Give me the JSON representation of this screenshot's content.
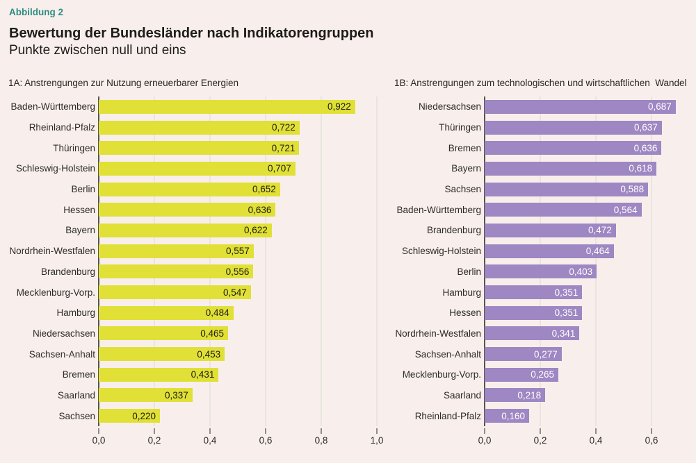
{
  "figure_label": "Abbildung 2",
  "header": {
    "title": "Bewertung der Bundesländer nach Indikatorengruppen",
    "subtitle": "Punkte zwischen null und eins"
  },
  "colors": {
    "background": "#f8efec",
    "accent_teal": "#2e8c82",
    "bar_yellow": "#e0e036",
    "bar_purple": "#9e87c2",
    "axis_line": "#57534d",
    "gridline": "#e9e5de",
    "tick": "#8f8c87",
    "text": "#262420",
    "value_label_left": "#1d1c18",
    "value_label_right": "#ffffff"
  },
  "chart_data": [
    {
      "type": "bar",
      "orientation": "horizontal",
      "title": "1A: Anstrengungen zur Nutzung erneuerbarer Energien",
      "categories": [
        "Baden-Württemberg",
        "Rheinland-Pfalz",
        "Thüringen",
        "Schleswig-Holstein",
        "Berlin",
        "Hessen",
        "Bayern",
        "Nordrhein-Westfalen",
        "Brandenburg",
        "Mecklenburg-Vorp.",
        "Hamburg",
        "Niedersachsen",
        "Sachsen-Anhalt",
        "Bremen",
        "Saarland",
        "Sachsen"
      ],
      "values": [
        0.922,
        0.722,
        0.721,
        0.707,
        0.652,
        0.636,
        0.622,
        0.557,
        0.556,
        0.547,
        0.484,
        0.465,
        0.453,
        0.431,
        0.337,
        0.22
      ],
      "value_labels": [
        "0,922",
        "0,722",
        "0,721",
        "0,707",
        "0,652",
        "0,636",
        "0,622",
        "0,557",
        "0,556",
        "0,547",
        "0,484",
        "0,465",
        "0,453",
        "0,431",
        "0,337",
        "0,220"
      ],
      "xlim": [
        0,
        1.0
      ],
      "grid": true,
      "bar_color": "#e0e036",
      "value_label_color": "#1d1c18",
      "value_label_position": "inside-end",
      "ticks": [
        {
          "value": 0.0,
          "label": "0,0"
        },
        {
          "value": 0.2,
          "label": "0,2"
        },
        {
          "value": 0.4,
          "label": "0,4"
        },
        {
          "value": 0.6,
          "label": "0,6"
        },
        {
          "value": 0.8,
          "label": "0,8"
        },
        {
          "value": 1.0,
          "label": "1,0"
        }
      ]
    },
    {
      "type": "bar",
      "orientation": "horizontal",
      "title": "1B: Anstrengungen zum technologischen und wirtschaftlichen  Wandel",
      "categories": [
        "Niedersachsen",
        "Thüringen",
        "Bremen",
        "Bayern",
        "Sachsen",
        "Baden-Württemberg",
        "Brandenburg",
        "Schleswig-Holstein",
        "Berlin",
        "Hamburg",
        "Hessen",
        "Nordrhein-Westfalen",
        "Sachsen-Anhalt",
        "Mecklenburg-Vorp.",
        "Saarland",
        "Rheinland-Pfalz"
      ],
      "values": [
        0.687,
        0.637,
        0.636,
        0.618,
        0.588,
        0.564,
        0.472,
        0.464,
        0.403,
        0.351,
        0.351,
        0.341,
        0.277,
        0.265,
        0.218,
        0.16
      ],
      "value_labels": [
        "0,687",
        "0,637",
        "0,636",
        "0,618",
        "0,588",
        "0,564",
        "0,472",
        "0,464",
        "0,403",
        "0,351",
        "0,351",
        "0,341",
        "0,277",
        "0,265",
        "0,218",
        "0,160"
      ],
      "xlim": [
        0,
        0.75
      ],
      "grid": true,
      "bar_color": "#9e87c2",
      "value_label_color": "#ffffff",
      "value_label_position": "inside-end",
      "ticks": [
        {
          "value": 0.0,
          "label": "0,0"
        },
        {
          "value": 0.2,
          "label": "0,2"
        },
        {
          "value": 0.4,
          "label": "0,4"
        },
        {
          "value": 0.6,
          "label": "0,6"
        }
      ]
    }
  ]
}
